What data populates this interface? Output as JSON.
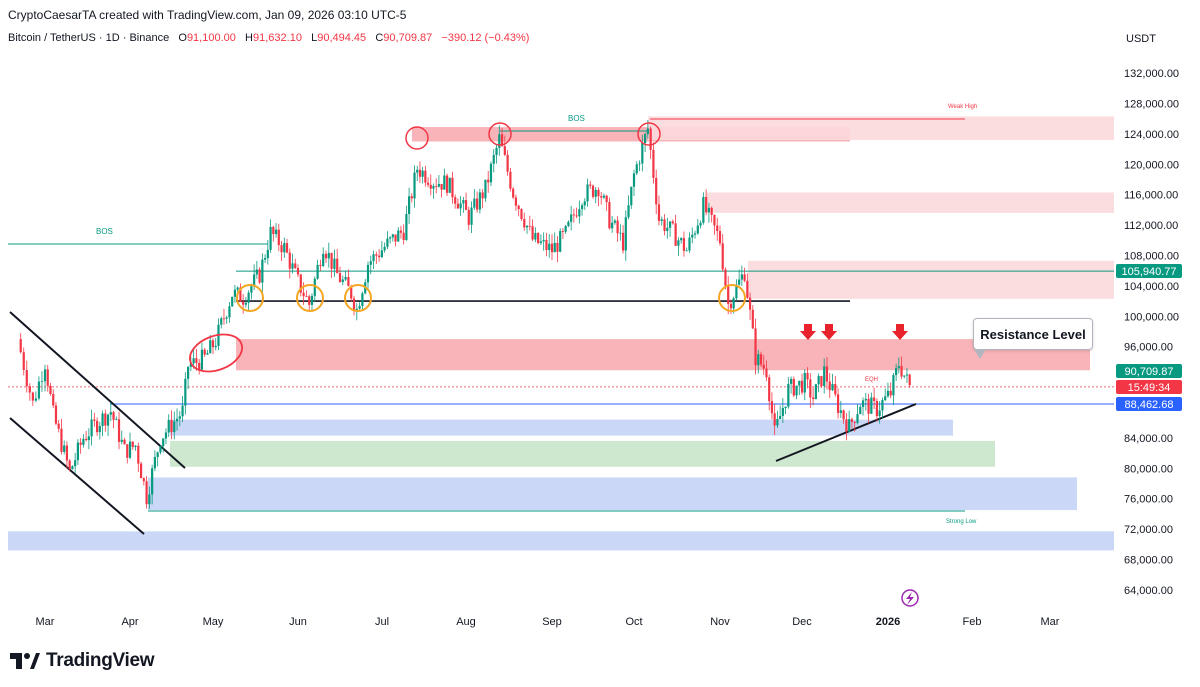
{
  "header": {
    "credit": "CryptoCaesarTA created with TradingView.com, Jan 09, 2026 03:10 UTC-5",
    "symbol": "Bitcoin / TetherUS · 1D · Binance",
    "open_label": "O",
    "open": "91,100.00",
    "high_label": "H",
    "high": "91,632.10",
    "low_label": "L",
    "low": "90,494.45",
    "close_label": "C",
    "close": "90,709.87",
    "change": "−390.12 (−0.43%)"
  },
  "brand": {
    "name": "TradingView"
  },
  "annotations": {
    "resistance": "Resistance Level",
    "bos_left": "BOS",
    "bos_top": "BOS",
    "weak_high": "Weak High",
    "strong_low": "Strong Low",
    "eqh": "EQH"
  },
  "colors": {
    "up": "#089981",
    "down": "#f23645",
    "zone_red": "#f7a7ab",
    "zone_red_light": "#fcd9db",
    "zone_blue": "#c4d3f6",
    "zone_green": "#c8e6c9",
    "price_tag": "#f23645",
    "green_tag": "#089981",
    "blue_tag": "#2962ff"
  },
  "chart_data": {
    "type": "candlestick",
    "title": "Bitcoin / TetherUS · 1D · Binance",
    "currency": "USDT",
    "ylim": [
      62000,
      136000
    ],
    "y_ticks": [
      "132,000.00",
      "128,000.00",
      "124,000.00",
      "120,000.00",
      "116,000.00",
      "112,000.00",
      "108,000.00",
      "104,000.00",
      "100,000.00",
      "96,000.00",
      "84,000.00",
      "80,000.00",
      "76,000.00",
      "72,000.00",
      "68,000.00",
      "64,000.00"
    ],
    "x_ticks": [
      "Mar",
      "Apr",
      "May",
      "Jun",
      "Jul",
      "Aug",
      "Sep",
      "Oct",
      "Nov",
      "Dec",
      "2026",
      "Feb",
      "Mar"
    ],
    "price_tags": [
      {
        "label": "105,940.77",
        "value": 105940.77,
        "kind": "green"
      },
      {
        "label": "90,709.87",
        "value": 90709.87,
        "kind": "green"
      },
      {
        "label": "15:49:34",
        "value": 89100,
        "kind": "red"
      },
      {
        "label": "88,462.68",
        "value": 88462.68,
        "kind": "blue"
      }
    ],
    "series": [
      {
        "name": "BTCUSDT daily close (approx.)",
        "points": [
          [
            "Feb 20",
            97000
          ],
          [
            "Feb 25",
            88500
          ],
          [
            "Mar 1",
            94000
          ],
          [
            "Mar 4",
            87000
          ],
          [
            "Mar 10",
            79500
          ],
          [
            "Mar 15",
            84000
          ],
          [
            "Mar 20",
            86000
          ],
          [
            "Mar 25",
            87500
          ],
          [
            "Mar 30",
            82300
          ],
          [
            "Apr 3",
            83000
          ],
          [
            "Apr 7",
            76300
          ],
          [
            "Apr 12",
            84000
          ],
          [
            "Apr 20",
            87500
          ],
          [
            "Apr 22",
            93500
          ],
          [
            "Apr 28",
            94500
          ],
          [
            "May 2",
            96800
          ],
          [
            "May 8",
            103000
          ],
          [
            "May 12",
            102500
          ],
          [
            "May 18",
            105500
          ],
          [
            "May 22",
            111000
          ],
          [
            "May 27",
            109000
          ],
          [
            "Jun 1",
            104500
          ],
          [
            "Jun 5",
            101600
          ],
          [
            "Jun 10",
            109500
          ],
          [
            "Jun 15",
            105500
          ],
          [
            "Jun 20",
            103000
          ],
          [
            "Jun 22",
            100900
          ],
          [
            "Jun 26",
            107000
          ],
          [
            "Jul 3",
            109500
          ],
          [
            "Jul 9",
            111300
          ],
          [
            "Jul 14",
            119500
          ],
          [
            "Jul 20",
            117800
          ],
          [
            "Jul 25",
            117500
          ],
          [
            "Aug 2",
            113000
          ],
          [
            "Aug 8",
            116800
          ],
          [
            "Aug 13",
            123300
          ],
          [
            "Aug 18",
            116300
          ],
          [
            "Aug 25",
            110100
          ],
          [
            "Sep 1",
            108700
          ],
          [
            "Sep 6",
            110800
          ],
          [
            "Sep 12",
            115900
          ],
          [
            "Sep 18",
            117100
          ],
          [
            "Sep 22",
            112700
          ],
          [
            "Sep 27",
            109700
          ],
          [
            "Oct 1",
            118600
          ],
          [
            "Oct 6",
            124700
          ],
          [
            "Oct 10",
            112800
          ],
          [
            "Oct 15",
            111000
          ],
          [
            "Oct 20",
            108700
          ],
          [
            "Oct 26",
            114500
          ],
          [
            "Nov 1",
            110000
          ],
          [
            "Nov 4",
            101600
          ],
          [
            "Nov 10",
            105900
          ],
          [
            "Nov 14",
            94600
          ],
          [
            "Nov 18",
            92900
          ],
          [
            "Nov 21",
            84500
          ],
          [
            "Nov 26",
            90400
          ],
          [
            "Dec 2",
            91300
          ],
          [
            "Dec 5",
            89300
          ],
          [
            "Dec 9",
            92700
          ],
          [
            "Dec 14",
            88200
          ],
          [
            "Dec 18",
            85400
          ],
          [
            "Dec 22",
            88600
          ],
          [
            "Dec 28",
            87800
          ],
          [
            "Jan 2",
            89900
          ],
          [
            "Jan 5",
            93800
          ],
          [
            "Jan 9",
            90709.87
          ]
        ]
      }
    ],
    "zones": [
      {
        "label": "Supply zone (Jul–Sep top)",
        "from": 123000,
        "to": 124900,
        "color": "red"
      },
      {
        "label": "Weak High zone",
        "from": 123200,
        "to": 126300,
        "color": "red-light"
      },
      {
        "label": "Zone 113,600–116,300",
        "from": 113600,
        "to": 116300,
        "color": "red-light"
      },
      {
        "label": "Zone 102,300–107,300",
        "from": 102300,
        "to": 107300,
        "color": "red-light"
      },
      {
        "label": "Resistance zone",
        "from": 92900,
        "to": 97000,
        "color": "red"
      },
      {
        "label": "Demand 84,300–86,400",
        "from": 84300,
        "to": 86400,
        "color": "blue"
      },
      {
        "label": "Demand 80,200–83,600",
        "from": 80200,
        "to": 83600,
        "color": "green"
      },
      {
        "label": "Demand 74,500–78,800",
        "from": 74500,
        "to": 78800,
        "color": "blue"
      },
      {
        "label": "Demand 69,200–71,700",
        "from": 69200,
        "to": 71700,
        "color": "blue"
      }
    ],
    "levels": [
      {
        "label": "BOS (left)",
        "value": 111000
      },
      {
        "label": "Support line",
        "value": 102000
      },
      {
        "label": "105,940.77 line",
        "value": 105940.77
      },
      {
        "label": "88,462.68 line",
        "value": 88462.68
      }
    ]
  }
}
